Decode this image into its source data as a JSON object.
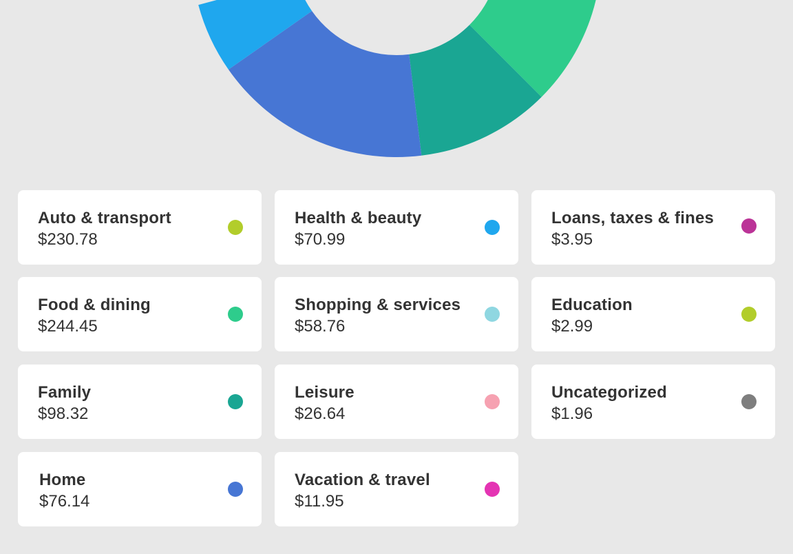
{
  "chart_data": {
    "type": "pie",
    "style": "donut",
    "categories": [
      "Food & dining",
      "Family",
      "Home",
      "Health & beauty"
    ],
    "colors": [
      "#2ecc8c",
      "#1aa693",
      "#4776d4",
      "#1fa7ee"
    ],
    "values": [
      244.45,
      98.32,
      76.14,
      70.99
    ]
  },
  "categories": [
    {
      "title": "Auto & transport",
      "amount": "$230.78",
      "color": "#b2cd2b"
    },
    {
      "title": "Health & beauty",
      "amount": "$70.99",
      "color": "#1fa7ee"
    },
    {
      "title": "Loans, taxes & fines",
      "amount": "$3.95",
      "color": "#bb3397"
    },
    {
      "title": "Food & dining",
      "amount": "$244.45",
      "color": "#2ecc8c"
    },
    {
      "title": "Shopping & services",
      "amount": "$58.76",
      "color": "#8fd7e1"
    },
    {
      "title": "Education",
      "amount": "$2.99",
      "color": "#b2cd2b"
    },
    {
      "title": "Family",
      "amount": "$98.32",
      "color": "#1aa693"
    },
    {
      "title": "Leisure",
      "amount": "$26.64",
      "color": "#f6a1b1"
    },
    {
      "title": "Uncategorized",
      "amount": "$1.96",
      "color": "#7e7e7e"
    },
    {
      "title": "Home",
      "amount": "$76.14",
      "color": "#4776d4"
    },
    {
      "title": "Vacation & travel",
      "amount": "$11.95",
      "color": "#e434b3"
    }
  ]
}
